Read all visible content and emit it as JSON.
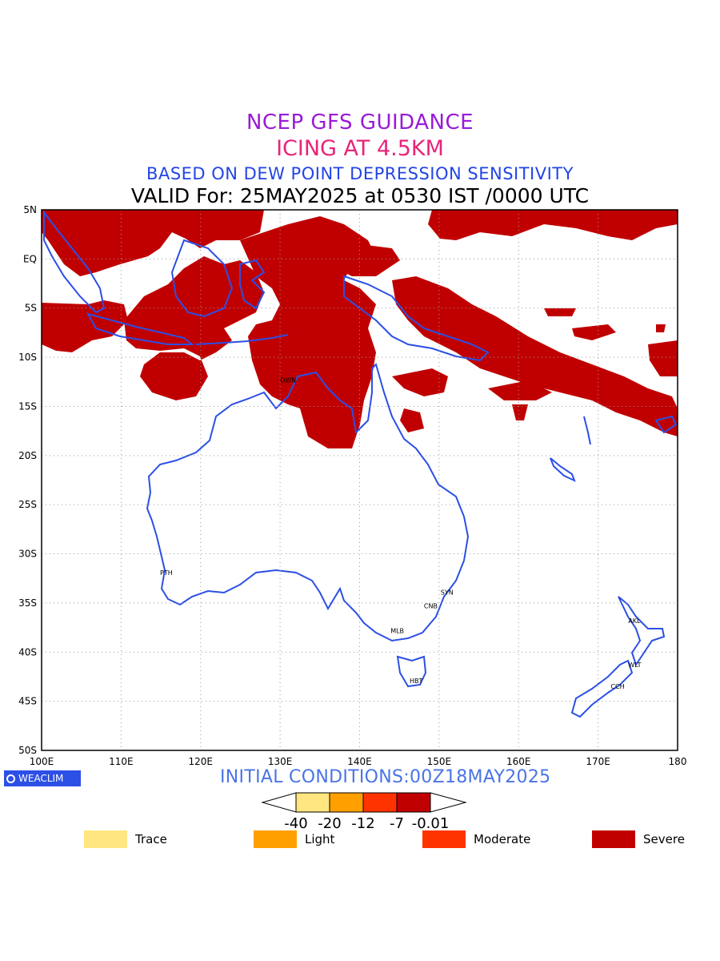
{
  "titles": {
    "line1": "NCEP GFS GUIDANCE",
    "line2": "ICING AT 4.5KM",
    "line3": "BASED ON DEW POINT DEPRESSION SENSITIVITY",
    "line4": "VALID For: 25MAY2025 at 0530 IST /0000 UTC"
  },
  "map": {
    "lon_range": [
      100,
      180
    ],
    "lat_range": [
      -50,
      5
    ],
    "lat_ticks": [
      "5N",
      "EQ",
      "5S",
      "10S",
      "15S",
      "20S",
      "25S",
      "30S",
      "35S",
      "40S",
      "45S",
      "50S"
    ],
    "lon_ticks": [
      "100E",
      "110E",
      "120E",
      "130E",
      "140E",
      "150E",
      "160E",
      "170E",
      "180"
    ],
    "grid": true,
    "coast_color": "#2c4fe6",
    "icing_color": "#c00000",
    "cities": [
      {
        "name": "DWN",
        "lon": 131.0,
        "lat": -12.3
      },
      {
        "name": "PTH",
        "lon": 115.9,
        "lat": -31.9
      },
      {
        "name": "SYN",
        "lon": 151.2,
        "lat": -33.9
      },
      {
        "name": "CNB",
        "lon": 149.1,
        "lat": -35.3
      },
      {
        "name": "MLB",
        "lon": 144.9,
        "lat": -37.8
      },
      {
        "name": "HBT",
        "lon": 147.3,
        "lat": -42.9
      },
      {
        "name": "AKL",
        "lon": 174.8,
        "lat": -36.8
      },
      {
        "name": "WLT",
        "lon": 174.8,
        "lat": -41.3
      },
      {
        "name": "CCH",
        "lon": 172.6,
        "lat": -43.5
      }
    ]
  },
  "footer": {
    "initial_conditions": "INITIAL CONDITIONS:00Z18MAY2025",
    "logo_text": "WEACLIM"
  },
  "colorbar": {
    "labels": [
      "-40",
      "-20",
      "-12",
      "-7",
      "-0.01"
    ],
    "colors": [
      "#ffe680",
      "#ffa000",
      "#ff3300",
      "#c00000"
    ]
  },
  "legend": [
    {
      "label": "Trace",
      "color": "#ffe680"
    },
    {
      "label": "Light",
      "color": "#ffa000"
    },
    {
      "label": "Moderate",
      "color": "#ff3300"
    },
    {
      "label": "Severe",
      "color": "#c00000"
    }
  ]
}
